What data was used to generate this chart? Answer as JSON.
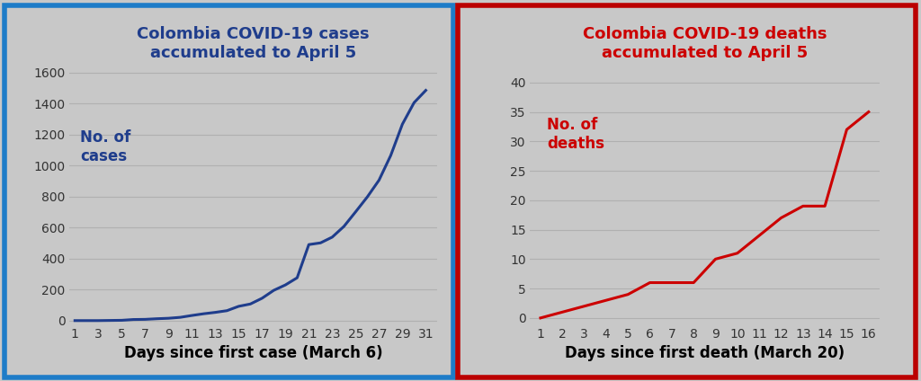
{
  "cases_x": [
    1,
    2,
    3,
    4,
    5,
    6,
    7,
    8,
    9,
    10,
    11,
    12,
    13,
    14,
    15,
    16,
    17,
    18,
    19,
    20,
    21,
    22,
    23,
    24,
    25,
    26,
    27,
    28,
    29,
    30,
    31
  ],
  "cases_y": [
    1,
    1,
    1,
    2,
    3,
    8,
    9,
    13,
    16,
    22,
    34,
    45,
    54,
    65,
    93,
    108,
    145,
    196,
    231,
    277,
    491,
    502,
    539,
    608,
    702,
    798,
    906,
    1065,
    1267,
    1406,
    1485
  ],
  "deaths_x": [
    1,
    2,
    3,
    4,
    5,
    6,
    7,
    8,
    9,
    10,
    11,
    12,
    13,
    14,
    15,
    16
  ],
  "deaths_y": [
    0,
    1,
    2,
    3,
    4,
    6,
    6,
    6,
    10,
    11,
    14,
    17,
    19,
    19,
    32,
    35
  ],
  "cases_title": "Colombia COVID-19 cases\naccumulated to April 5",
  "deaths_title": "Colombia COVID-19 deaths\naccumulated to April 5",
  "cases_xlabel": "Days since first case (March 6)",
  "deaths_xlabel": "Days since first death (March 20)",
  "cases_ylabel": "No. of\ncases",
  "deaths_ylabel": "No. of\ndeaths",
  "cases_line_color": "#1F3D8C",
  "deaths_line_color": "#CC0000",
  "cases_title_color": "#1F3D8C",
  "deaths_title_color": "#CC0000",
  "cases_ylabel_color": "#1F3D8C",
  "deaths_ylabel_color": "#CC0000",
  "bg_color": "#C8C8C8",
  "axes_bg_color": "#C8C8C8",
  "cases_border_color": "#1E7CC8",
  "deaths_border_color": "#BB0000",
  "cases_yticks": [
    0,
    200,
    400,
    600,
    800,
    1000,
    1200,
    1400,
    1600
  ],
  "cases_xticks": [
    1,
    3,
    5,
    7,
    9,
    11,
    13,
    15,
    17,
    19,
    21,
    23,
    25,
    27,
    29,
    31
  ],
  "deaths_yticks": [
    0,
    5,
    10,
    15,
    20,
    25,
    30,
    35,
    40
  ],
  "deaths_xticks": [
    1,
    2,
    3,
    4,
    5,
    6,
    7,
    8,
    9,
    10,
    11,
    12,
    13,
    14,
    15,
    16
  ],
  "xlabel_color": "#000000",
  "tick_color": "#333333",
  "grid_color": "#B0B0B0",
  "title_fontsize": 13,
  "xlabel_fontsize": 12,
  "ylabel_fontsize": 12,
  "tick_fontsize": 10,
  "line_width": 2.2
}
